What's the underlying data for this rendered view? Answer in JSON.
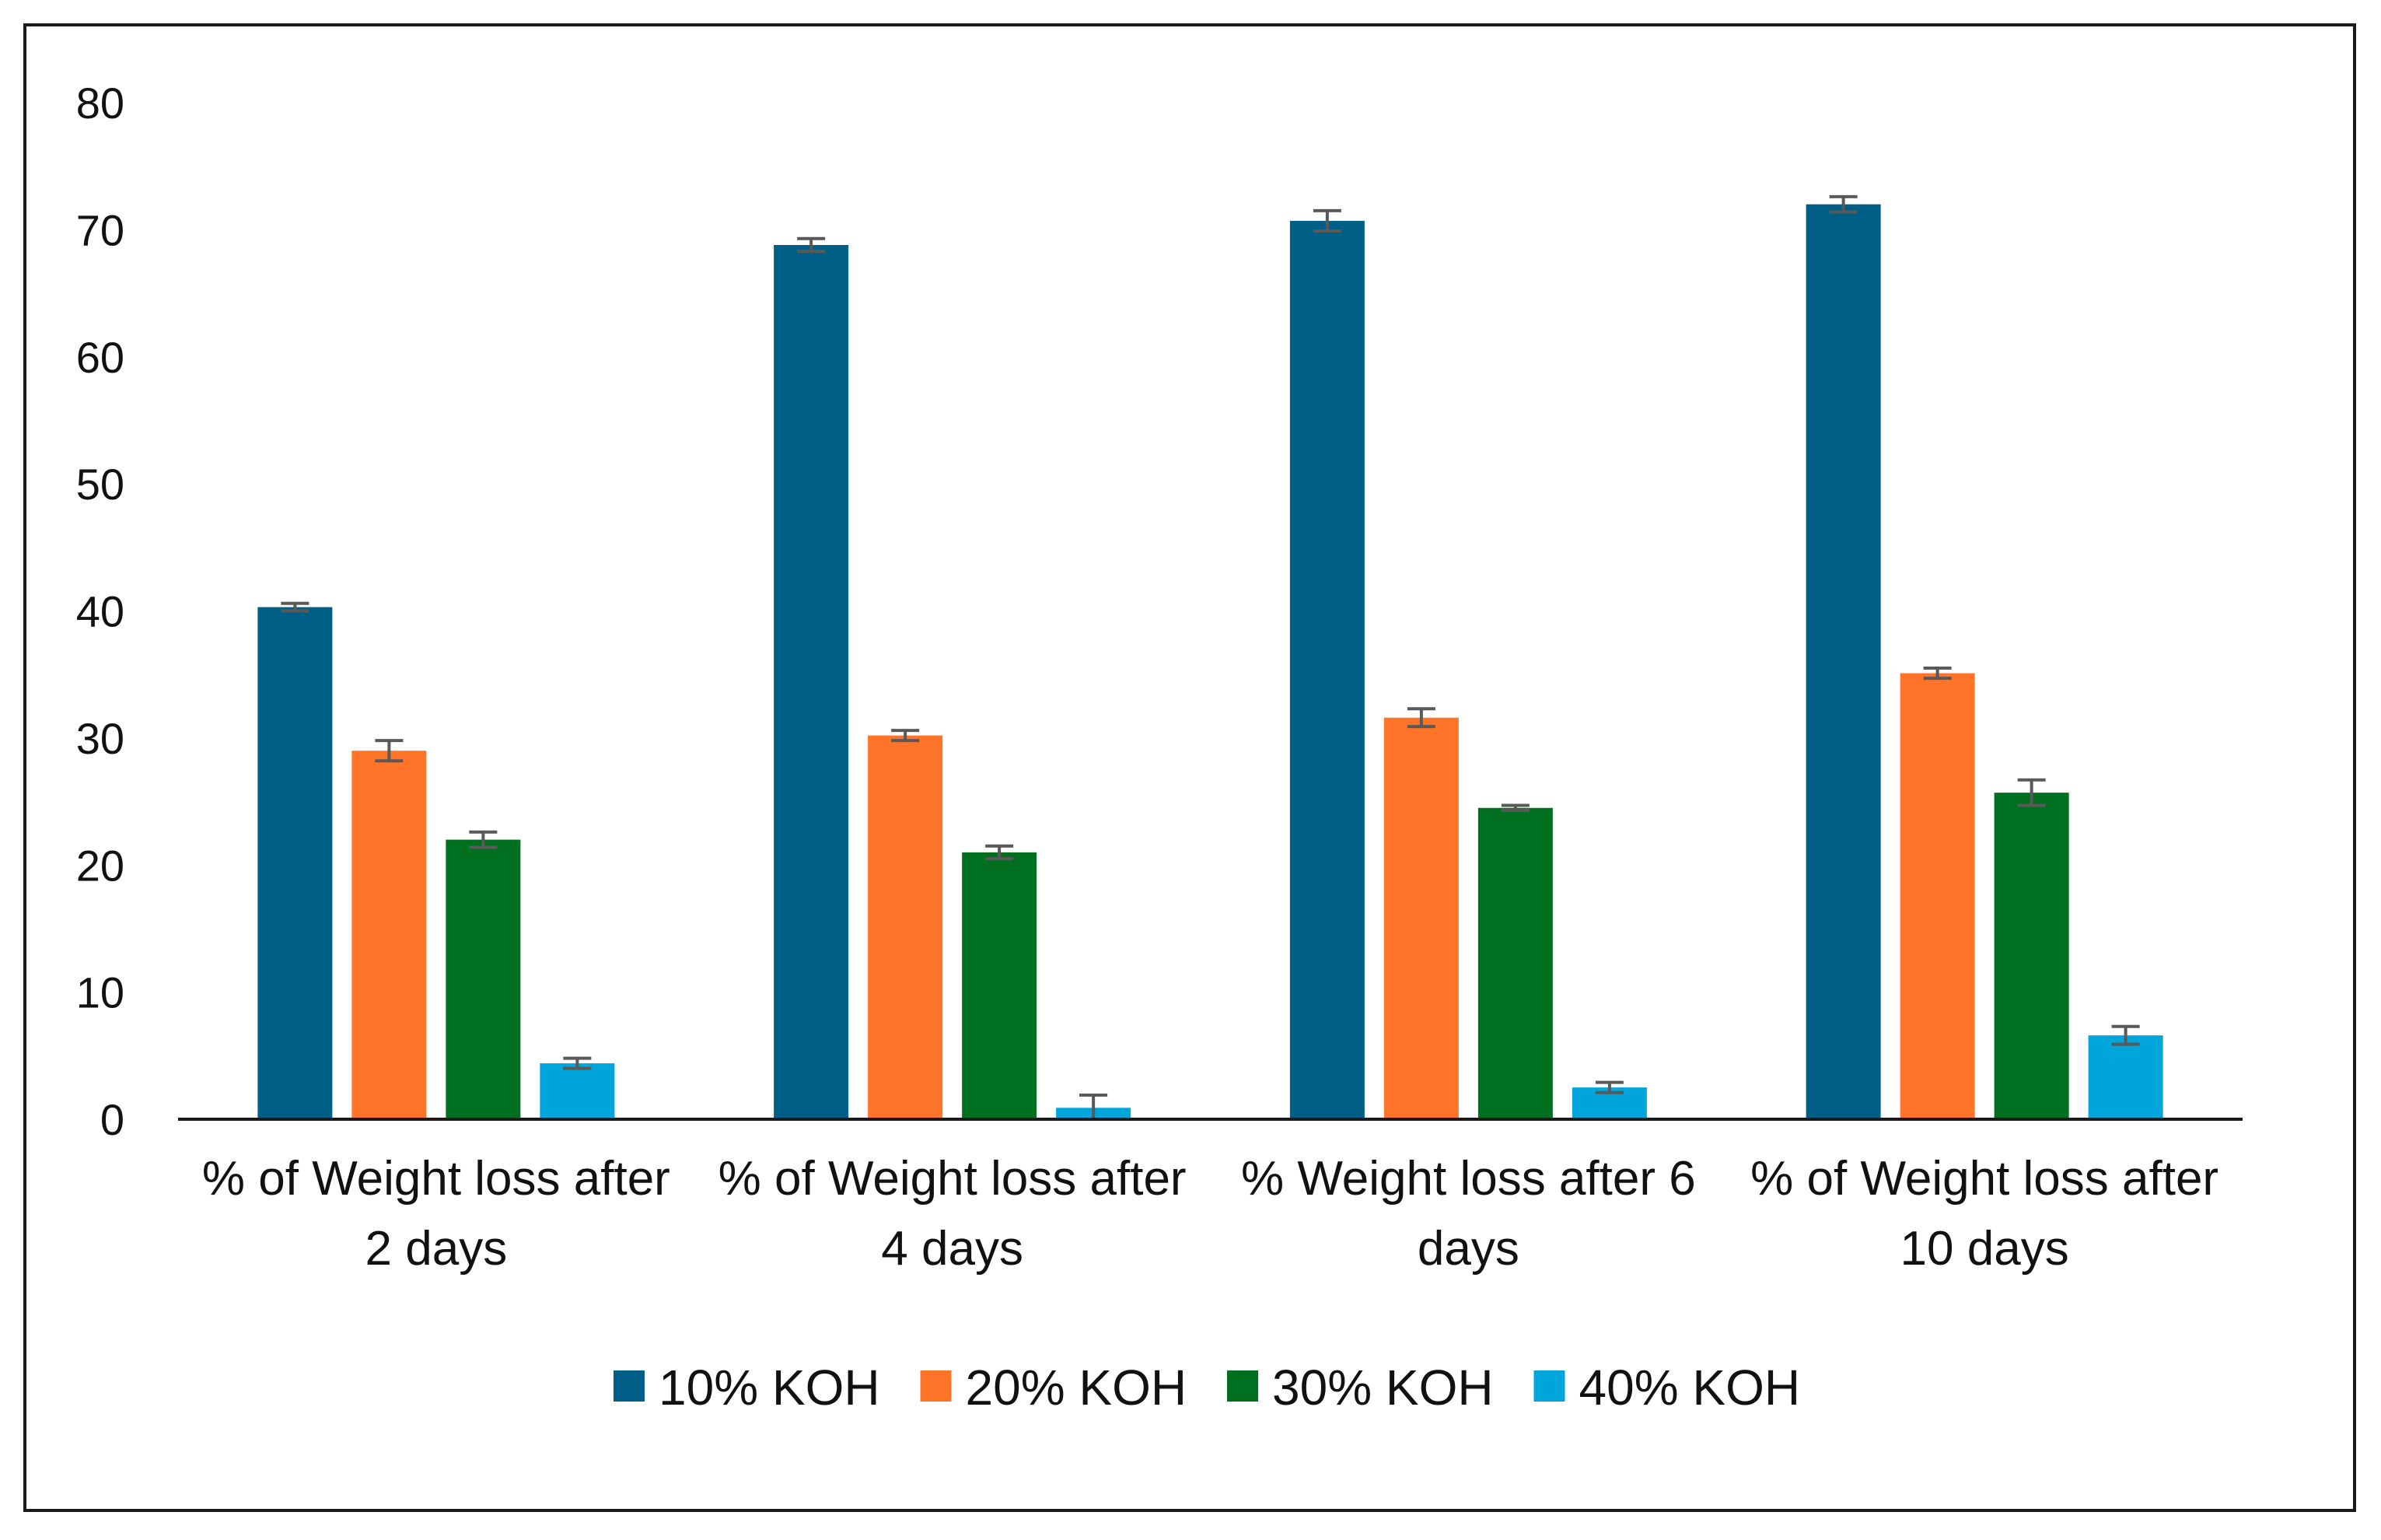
{
  "chart_data": {
    "type": "bar",
    "title": "",
    "xlabel": "",
    "ylabel": "",
    "ylim": [
      0,
      80
    ],
    "yticks": [
      0,
      10,
      20,
      30,
      40,
      50,
      60,
      70,
      80
    ],
    "grid": false,
    "legend_position": "bottom",
    "categories": [
      [
        "% of Weight loss after",
        "2 days"
      ],
      [
        "% of Weight loss after",
        "4 days"
      ],
      [
        "% Weight loss after 6",
        "days"
      ],
      [
        "% of Weight loss after",
        "10 days"
      ]
    ],
    "series": [
      {
        "name": "10% KOH",
        "color": "#005f86",
        "values": [
          40.3,
          68.8,
          70.7,
          72.0
        ],
        "errors": [
          0.3,
          0.5,
          0.8,
          0.6
        ]
      },
      {
        "name": "20% KOH",
        "color": "#ff7429",
        "values": [
          29.0,
          30.2,
          31.6,
          35.1
        ],
        "errors": [
          0.8,
          0.4,
          0.7,
          0.4
        ]
      },
      {
        "name": "30% KOH",
        "color": "#006f1f",
        "values": [
          22.0,
          21.0,
          24.5,
          25.7
        ],
        "errors": [
          0.6,
          0.5,
          0.2,
          1.0
        ]
      },
      {
        "name": "40% KOH",
        "color": "#00a5dc",
        "values": [
          4.4,
          0.9,
          2.5,
          6.6
        ],
        "errors": [
          0.4,
          1.0,
          0.4,
          0.7
        ]
      }
    ]
  }
}
